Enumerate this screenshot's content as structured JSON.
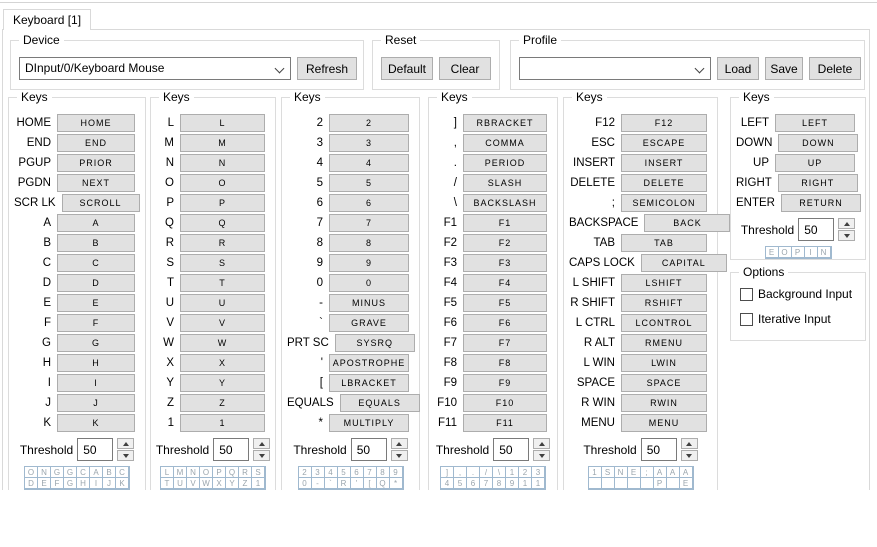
{
  "tab": {
    "label": "Keyboard [1]"
  },
  "device": {
    "label": "Device",
    "value": "DInput/0/Keyboard Mouse",
    "refresh_label": "Refresh"
  },
  "reset": {
    "label": "Reset",
    "default_label": "Default",
    "clear_label": "Clear"
  },
  "profile": {
    "label": "Profile",
    "value": "",
    "load_label": "Load",
    "save_label": "Save",
    "delete_label": "Delete"
  },
  "threshold_label": "Threshold",
  "colors": {
    "button_face": "#e1e1e1",
    "button_border": "#adadad",
    "group_border": "#dcdcdc",
    "grid_border": "#a0b9cf",
    "grid_text": "#9aa5ad"
  },
  "columns": [
    {
      "title": "Keys",
      "threshold": "50",
      "rows": [
        {
          "label": "HOME",
          "key": "HOME"
        },
        {
          "label": "END",
          "key": "END"
        },
        {
          "label": "PGUP",
          "key": "PRIOR"
        },
        {
          "label": "PGDN",
          "key": "NEXT"
        },
        {
          "label": "SCR LK",
          "key": "SCROLL"
        },
        {
          "label": "A",
          "key": "A"
        },
        {
          "label": "B",
          "key": "B"
        },
        {
          "label": "C",
          "key": "C"
        },
        {
          "label": "D",
          "key": "D"
        },
        {
          "label": "E",
          "key": "E"
        },
        {
          "label": "F",
          "key": "F"
        },
        {
          "label": "G",
          "key": "G"
        },
        {
          "label": "H",
          "key": "H"
        },
        {
          "label": "I",
          "key": "I"
        },
        {
          "label": "J",
          "key": "J"
        },
        {
          "label": "K",
          "key": "K"
        }
      ],
      "grid": [
        [
          "O",
          "N",
          "G",
          "G",
          "C",
          "A",
          "B",
          "C"
        ],
        [
          "D",
          "E",
          "F",
          "G",
          "H",
          "I",
          "J",
          "K"
        ]
      ]
    },
    {
      "title": "Keys",
      "threshold": "50",
      "rows": [
        {
          "label": "L",
          "key": "L"
        },
        {
          "label": "M",
          "key": "M"
        },
        {
          "label": "N",
          "key": "N"
        },
        {
          "label": "O",
          "key": "O"
        },
        {
          "label": "P",
          "key": "P"
        },
        {
          "label": "Q",
          "key": "Q"
        },
        {
          "label": "R",
          "key": "R"
        },
        {
          "label": "S",
          "key": "S"
        },
        {
          "label": "T",
          "key": "T"
        },
        {
          "label": "U",
          "key": "U"
        },
        {
          "label": "V",
          "key": "V"
        },
        {
          "label": "W",
          "key": "W"
        },
        {
          "label": "X",
          "key": "X"
        },
        {
          "label": "Y",
          "key": "Y"
        },
        {
          "label": "Z",
          "key": "Z"
        },
        {
          "label": "1",
          "key": "1"
        }
      ],
      "grid": [
        [
          "L",
          "M",
          "N",
          "O",
          "P",
          "Q",
          "R",
          "S"
        ],
        [
          "T",
          "U",
          "V",
          "W",
          "X",
          "Y",
          "Z",
          "1"
        ]
      ]
    },
    {
      "title": "Keys",
      "threshold": "50",
      "rows": [
        {
          "label": "2",
          "key": "2"
        },
        {
          "label": "3",
          "key": "3"
        },
        {
          "label": "4",
          "key": "4"
        },
        {
          "label": "5",
          "key": "5"
        },
        {
          "label": "6",
          "key": "6"
        },
        {
          "label": "7",
          "key": "7"
        },
        {
          "label": "8",
          "key": "8"
        },
        {
          "label": "9",
          "key": "9"
        },
        {
          "label": "0",
          "key": "0"
        },
        {
          "label": "-",
          "key": "MINUS"
        },
        {
          "label": "`",
          "key": "GRAVE"
        },
        {
          "label": "PRT SC",
          "key": "SYSRQ"
        },
        {
          "label": "'",
          "key": "APOSTROPHE"
        },
        {
          "label": "[",
          "key": "LBRACKET"
        },
        {
          "label": "EQUALS",
          "key": "EQUALS"
        },
        {
          "label": "*",
          "key": "MULTIPLY"
        }
      ],
      "grid": [
        [
          "2",
          "3",
          "4",
          "5",
          "6",
          "7",
          "8",
          "9"
        ],
        [
          "0",
          "-",
          "`",
          "R",
          "'",
          "[",
          "Q",
          "*"
        ]
      ]
    },
    {
      "title": "Keys",
      "threshold": "50",
      "rows": [
        {
          "label": "]",
          "key": "RBRACKET"
        },
        {
          "label": ",",
          "key": "COMMA"
        },
        {
          "label": ".",
          "key": "PERIOD"
        },
        {
          "label": "/",
          "key": "SLASH"
        },
        {
          "label": "\\",
          "key": "BACKSLASH"
        },
        {
          "label": "F1",
          "key": "F1"
        },
        {
          "label": "F2",
          "key": "F2"
        },
        {
          "label": "F3",
          "key": "F3"
        },
        {
          "label": "F4",
          "key": "F4"
        },
        {
          "label": "F5",
          "key": "F5"
        },
        {
          "label": "F6",
          "key": "F6"
        },
        {
          "label": "F7",
          "key": "F7"
        },
        {
          "label": "F8",
          "key": "F8"
        },
        {
          "label": "F9",
          "key": "F9"
        },
        {
          "label": "F10",
          "key": "F10"
        },
        {
          "label": "F11",
          "key": "F11"
        }
      ],
      "grid": [
        [
          "]",
          ",",
          ".",
          "/",
          "\\",
          "1",
          "2",
          "3"
        ],
        [
          "4",
          "5",
          "6",
          "7",
          "8",
          "9",
          "1",
          "1"
        ]
      ]
    },
    {
      "title": "Keys",
      "threshold": "50",
      "rows": [
        {
          "label": "F12",
          "key": "F12"
        },
        {
          "label": "ESC",
          "key": "ESCAPE"
        },
        {
          "label": "INSERT",
          "key": "INSERT"
        },
        {
          "label": "DELETE",
          "key": "DELETE"
        },
        {
          "label": ";",
          "key": "SEMICOLON"
        },
        {
          "label": "BACKSPACE",
          "key": "BACK"
        },
        {
          "label": "TAB",
          "key": "TAB"
        },
        {
          "label": "CAPS LOCK",
          "key": "CAPITAL"
        },
        {
          "label": "L SHIFT",
          "key": "LSHIFT"
        },
        {
          "label": "R SHIFT",
          "key": "RSHIFT"
        },
        {
          "label": "L CTRL",
          "key": "LCONTROL"
        },
        {
          "label": "R ALT",
          "key": "RMENU"
        },
        {
          "label": "L WIN",
          "key": "LWIN"
        },
        {
          "label": "SPACE",
          "key": "SPACE"
        },
        {
          "label": "R WIN",
          "key": "RWIN"
        },
        {
          "label": "MENU",
          "key": "MENU"
        }
      ],
      "grid": [
        [
          "1",
          "S",
          "N",
          "E",
          ";",
          "A",
          "A",
          "A"
        ],
        [
          "",
          "",
          "",
          "",
          "",
          "P",
          "",
          "E"
        ]
      ]
    },
    {
      "title": "Keys",
      "threshold": "50",
      "rows": [
        {
          "label": "LEFT",
          "key": "LEFT"
        },
        {
          "label": "DOWN",
          "key": "DOWN"
        },
        {
          "label": "UP",
          "key": "UP"
        },
        {
          "label": "RIGHT",
          "key": "RIGHT"
        },
        {
          "label": "ENTER",
          "key": "RETURN"
        }
      ],
      "grid": [
        [
          "E",
          "O",
          "P",
          "I",
          "N"
        ]
      ]
    }
  ],
  "options": {
    "title": "Options",
    "items": [
      {
        "label": "Background Input",
        "checked": false
      },
      {
        "label": "Iterative Input",
        "checked": false
      }
    ]
  }
}
